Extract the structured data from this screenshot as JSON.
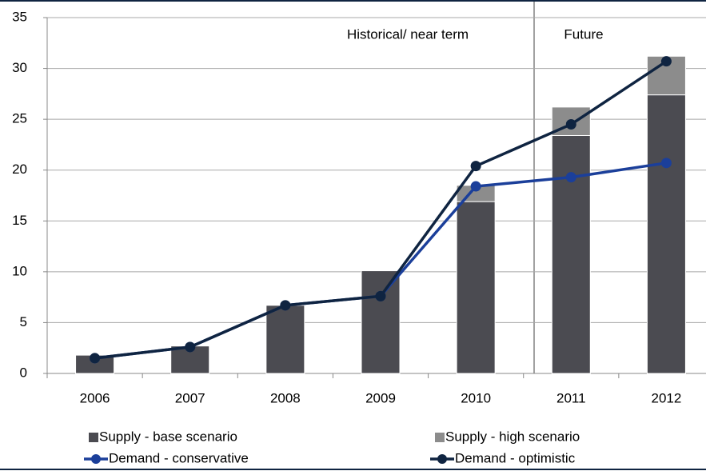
{
  "chart_data": {
    "type": "bar_line",
    "annotations": [
      "Historical/  near term",
      "Future"
    ],
    "categories": [
      "2006",
      "2007",
      "2008",
      "2009",
      "2010",
      "2011",
      "2012"
    ],
    "series": [
      {
        "name": "Supply - base scenario",
        "type": "bar",
        "color": "#4b4b51",
        "values": [
          1.8,
          2.7,
          6.7,
          10.1,
          16.9,
          23.4,
          27.4
        ]
      },
      {
        "name": "Supply - high scenario",
        "type": "bar",
        "color": "#8c8c8c",
        "values": [
          0,
          0,
          0,
          0,
          1.6,
          2.8,
          3.8
        ]
      },
      {
        "name": "Demand - conservative",
        "type": "line",
        "color": "#1b3f9a",
        "values": [
          1.5,
          2.6,
          6.7,
          7.6,
          18.4,
          19.3,
          20.7
        ]
      },
      {
        "name": "Demand - optimistic",
        "type": "line",
        "color": "#0f2441",
        "values": [
          1.5,
          2.6,
          6.7,
          7.6,
          20.4,
          24.5,
          30.7
        ]
      }
    ],
    "ylim": [
      0,
      35
    ],
    "yticks": [
      0,
      5,
      10,
      15,
      20,
      25,
      30,
      35
    ],
    "grid": true
  }
}
